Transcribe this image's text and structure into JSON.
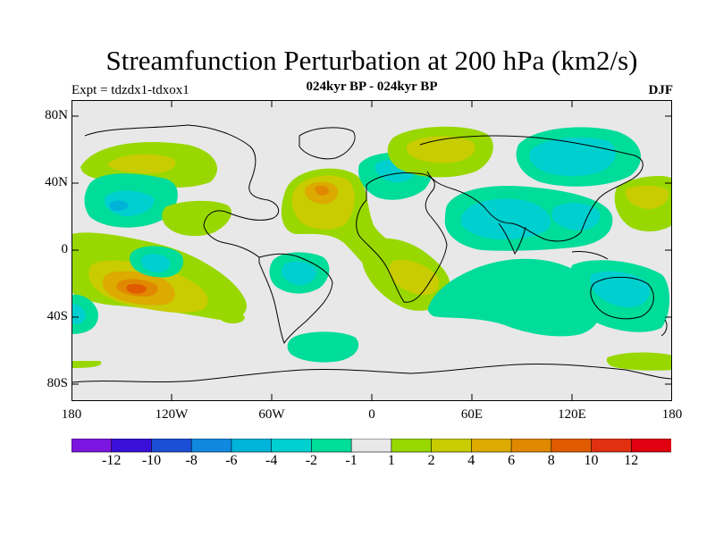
{
  "title": "Streamfunction Perturbation at 200 hPa (km2/s)",
  "subtitle": "024kyr BP - 024kyr BP",
  "expt_label": "Expt = tdzdx1-tdxox1",
  "season": "DJF",
  "lat_labels": [
    "80N",
    "40N",
    "0",
    "40S",
    "80S"
  ],
  "lon_labels": [
    "180",
    "120W",
    "60W",
    "0",
    "60E",
    "120E",
    "180"
  ],
  "colorbar": {
    "labels": [
      "-12",
      "-10",
      "-8",
      "-6",
      "-4",
      "-2",
      "-1",
      "1",
      "2",
      "4",
      "6",
      "8",
      "10",
      "12"
    ],
    "colors": [
      "#7b16e0",
      "#3a0fd8",
      "#1a4fd6",
      "#1188e0",
      "#00b3d9",
      "#00cfd0",
      "#00dc9a",
      "#e8e8e8",
      "#98d800",
      "#c8cc00",
      "#dcaa00",
      "#e08800",
      "#e05a00",
      "#e03010",
      "#e00010"
    ]
  },
  "map_colors": {
    "background": "#e8e8e8",
    "neg_weak": "#00dc9a",
    "neg_mid": "#00cfd0",
    "neg_strong": "#00b3d9",
    "pos_weak": "#98d800",
    "pos_mid": "#c8cc00",
    "pos_strong": "#dcaa00",
    "pos_peak": "#e08800",
    "pos_max": "#e05a00"
  }
}
